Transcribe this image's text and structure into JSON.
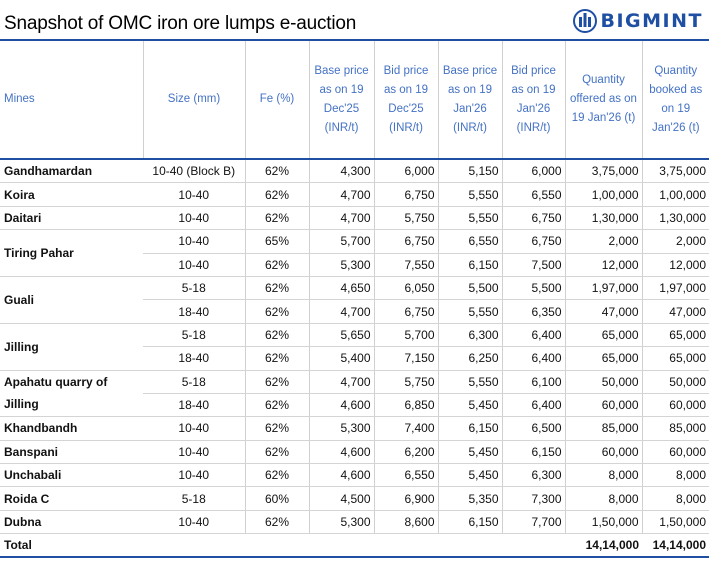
{
  "title": "Snapshot of OMC iron ore lumps e-auction",
  "brand": {
    "name": "BIGMINT",
    "logo_icon": "bigmint-logo-icon",
    "color": "#1f4fa3"
  },
  "headers": {
    "mines": "Mines",
    "size": "Size (mm)",
    "fe": "Fe (%)",
    "base_dec": "Base price as on 19 Dec'25 (INR/t)",
    "bid_dec": "Bid price as on 19 Dec'25 (INR/t)",
    "base_jan": "Base price as on 19 Jan'26 (INR/t)",
    "bid_jan": "Bid price as on 19 Jan'26 (INR/t)",
    "qty_offered": "Quantity offered as on 19 Jan'26 (t)",
    "qty_booked": "Quantity booked as on 19 Jan'26 (t)"
  },
  "rows": [
    {
      "mine": "Gandhamardan",
      "size": "10-40 (Block B)",
      "fe": "62%",
      "base_dec": "4,300",
      "bid_dec": "6,000",
      "base_jan": "5,150",
      "bid_jan": "6,000",
      "offered": "3,75,000",
      "booked": "3,75,000"
    },
    {
      "mine": "Koira",
      "size": "10-40",
      "fe": "62%",
      "base_dec": "4,700",
      "bid_dec": "6,750",
      "base_jan": "5,550",
      "bid_jan": "6,550",
      "offered": "1,00,000",
      "booked": "1,00,000"
    },
    {
      "mine": "Daitari",
      "size": "10-40",
      "fe": "62%",
      "base_dec": "4,700",
      "bid_dec": "5,750",
      "base_jan": "5,550",
      "bid_jan": "6,750",
      "offered": "1,30,000",
      "booked": "1,30,000"
    },
    {
      "mine": "Tiring Pahar",
      "size": "10-40",
      "fe": "65%",
      "base_dec": "5,700",
      "bid_dec": "6,750",
      "base_jan": "6,550",
      "bid_jan": "6,750",
      "offered": "2,000",
      "booked": "2,000"
    },
    {
      "mine": "",
      "size": "10-40",
      "fe": "62%",
      "base_dec": "5,300",
      "bid_dec": "7,550",
      "base_jan": "6,150",
      "bid_jan": "7,500",
      "offered": "12,000",
      "booked": "12,000"
    },
    {
      "mine": "Guali",
      "size": "5-18",
      "fe": "62%",
      "base_dec": "4,650",
      "bid_dec": "6,050",
      "base_jan": "5,500",
      "bid_jan": "5,500",
      "offered": "1,97,000",
      "booked": "1,97,000"
    },
    {
      "mine": "",
      "size": "18-40",
      "fe": "62%",
      "base_dec": "4,700",
      "bid_dec": "6,750",
      "base_jan": "5,550",
      "bid_jan": "6,350",
      "offered": "47,000",
      "booked": "47,000"
    },
    {
      "mine": "Jilling",
      "size": "5-18",
      "fe": "62%",
      "base_dec": "5,650",
      "bid_dec": "5,700",
      "base_jan": "6,300",
      "bid_jan": "6,400",
      "offered": "65,000",
      "booked": "65,000"
    },
    {
      "mine": "",
      "size": "18-40",
      "fe": "62%",
      "base_dec": "5,400",
      "bid_dec": "7,150",
      "base_jan": "6,250",
      "bid_jan": "6,400",
      "offered": "65,000",
      "booked": "65,000"
    },
    {
      "mine": "Apahatu quarry of Jilling",
      "size": "5-18",
      "fe": "62%",
      "base_dec": "4,700",
      "bid_dec": "5,750",
      "base_jan": "5,550",
      "bid_jan": "6,100",
      "offered": "50,000",
      "booked": "50,000"
    },
    {
      "mine": "",
      "size": "18-40",
      "fe": "62%",
      "base_dec": "4,600",
      "bid_dec": "6,850",
      "base_jan": "5,450",
      "bid_jan": "6,400",
      "offered": "60,000",
      "booked": "60,000"
    },
    {
      "mine": "Khandbandh",
      "size": "10-40",
      "fe": "62%",
      "base_dec": "5,300",
      "bid_dec": "7,400",
      "base_jan": "6,150",
      "bid_jan": "6,500",
      "offered": "85,000",
      "booked": "85,000"
    },
    {
      "mine": "Banspani",
      "size": "10-40",
      "fe": "62%",
      "base_dec": "4,600",
      "bid_dec": "6,200",
      "base_jan": "5,450",
      "bid_jan": "6,150",
      "offered": "60,000",
      "booked": "60,000"
    },
    {
      "mine": "Unchabali",
      "size": "10-40",
      "fe": "62%",
      "base_dec": "4,600",
      "bid_dec": "6,550",
      "base_jan": "5,450",
      "bid_jan": "6,300",
      "offered": "8,000",
      "booked": "8,000"
    },
    {
      "mine": "Roida C",
      "size": "5-18",
      "fe": "60%",
      "base_dec": "4,500",
      "bid_dec": "6,900",
      "base_jan": "5,350",
      "bid_jan": "7,300",
      "offered": "8,000",
      "booked": "8,000"
    },
    {
      "mine": "Dubna",
      "size": "10-40",
      "fe": "62%",
      "base_dec": "5,300",
      "bid_dec": "8,600",
      "base_jan": "6,150",
      "bid_jan": "7,700",
      "offered": "1,50,000",
      "booked": "1,50,000"
    }
  ],
  "total": {
    "label": "Total",
    "offered": "14,14,000",
    "booked": "14,14,000"
  }
}
